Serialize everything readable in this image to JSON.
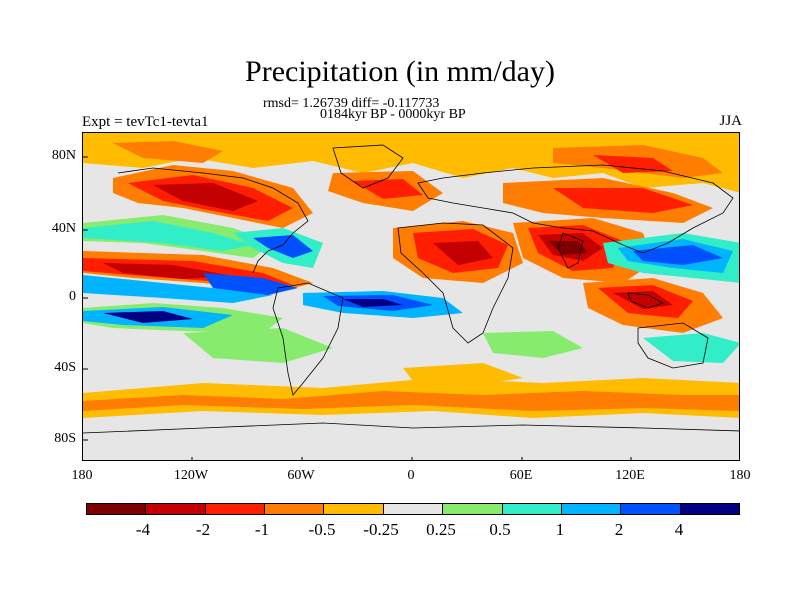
{
  "title": "Precipitation (in mm/day)",
  "stats_line": "rmsd= 1.26739 diff= -0.117733",
  "period_line": "0184kyr BP - 0000kyr BP",
  "experiment_label": "Expt = tevTc1-tevta1",
  "season_label": "JJA",
  "lat_labels": [
    "80N",
    "40N",
    "0",
    "40S",
    "80S"
  ],
  "lon_labels": [
    "180",
    "120W",
    "60W",
    "0",
    "60E",
    "120E",
    "180"
  ],
  "colorbar": {
    "colors": [
      "#7d0000",
      "#c40000",
      "#ff1e00",
      "#ff7d00",
      "#ffbc00",
      "#e6e6e6",
      "#87eb6e",
      "#32eec8",
      "#00b4ff",
      "#0050ff",
      "#000082"
    ],
    "labels": [
      "-4",
      "-2",
      "-1",
      "-0.5",
      "-0.25",
      "0.25",
      "0.5",
      "1",
      "2",
      "4"
    ]
  }
}
